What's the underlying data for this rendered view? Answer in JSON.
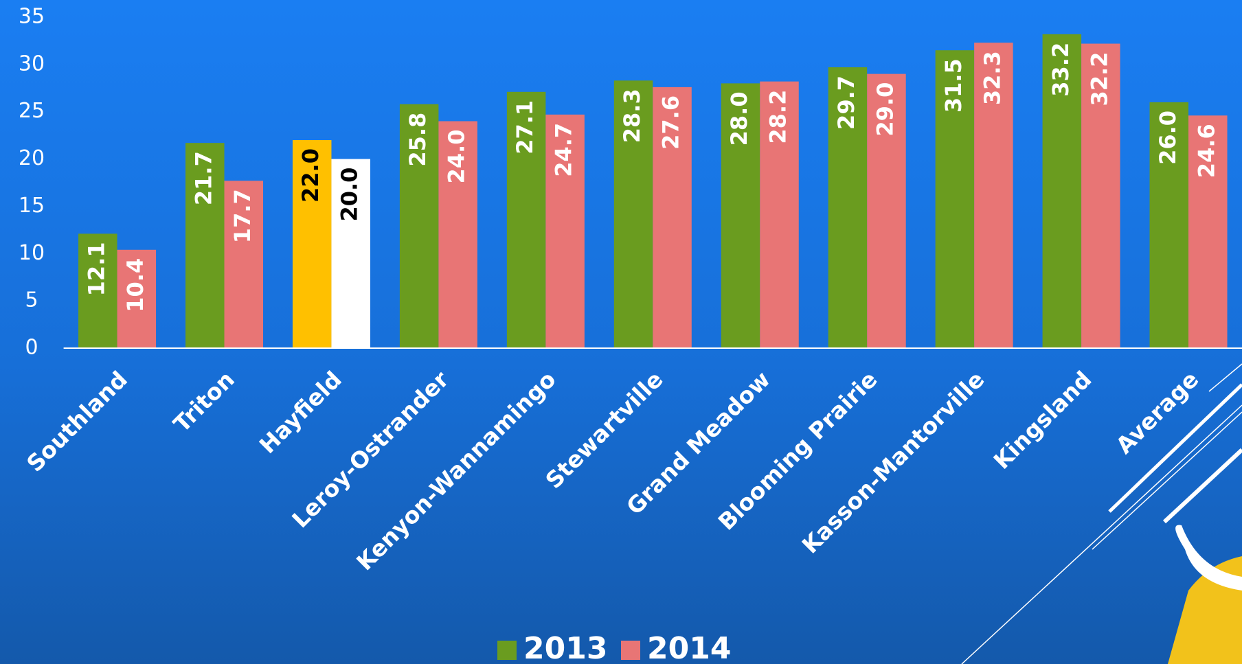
{
  "chart_data": {
    "type": "bar",
    "categories": [
      "Southland",
      "Triton",
      "Hayfield",
      "Leroy-Ostrander",
      "Kenyon-Wannamingo",
      "Stewartville",
      "Grand Meadow",
      "Blooming Prairie",
      "Kasson-Mantorville",
      "Kingsland",
      "Average"
    ],
    "series": [
      {
        "name": "2013",
        "color": "#6a9c1f",
        "colors": [
          "#6a9c1f",
          "#6a9c1f",
          "#ffc000",
          "#6a9c1f",
          "#6a9c1f",
          "#6a9c1f",
          "#6a9c1f",
          "#6a9c1f",
          "#6a9c1f",
          "#6a9c1f",
          "#6a9c1f"
        ],
        "label_colors": [
          "#ffffff",
          "#ffffff",
          "#000000",
          "#ffffff",
          "#ffffff",
          "#ffffff",
          "#ffffff",
          "#ffffff",
          "#ffffff",
          "#ffffff",
          "#ffffff"
        ],
        "values": [
          12.1,
          21.7,
          22.0,
          25.8,
          27.1,
          28.3,
          28.0,
          29.7,
          31.5,
          33.2,
          26.0
        ],
        "value_labels": [
          "12.1",
          "21.7",
          "22.0",
          "25.8",
          "27.1",
          "28.3",
          "28.0",
          "29.7",
          "31.5",
          "33.2",
          "26.0"
        ]
      },
      {
        "name": "2014",
        "color": "#e87575",
        "colors": [
          "#e87575",
          "#e87575",
          "#ffffff",
          "#e87575",
          "#e87575",
          "#e87575",
          "#e87575",
          "#e87575",
          "#e87575",
          "#e87575",
          "#e87575"
        ],
        "label_colors": [
          "#ffffff",
          "#ffffff",
          "#000000",
          "#ffffff",
          "#ffffff",
          "#ffffff",
          "#ffffff",
          "#ffffff",
          "#ffffff",
          "#ffffff",
          "#ffffff"
        ],
        "values": [
          10.4,
          17.7,
          20.0,
          24.0,
          24.7,
          27.6,
          28.2,
          29.0,
          32.3,
          32.2,
          24.6
        ],
        "value_labels": [
          "10.4",
          "17.7",
          "20.0",
          "24.0",
          "24.7",
          "27.6",
          "28.2",
          "29.0",
          "32.3",
          "32.2",
          "24.6"
        ]
      }
    ],
    "ylim": [
      0,
      35
    ],
    "yticks": [
      0,
      5,
      10,
      15,
      20,
      25,
      30,
      35
    ],
    "grid": false,
    "legend": "bottom"
  }
}
